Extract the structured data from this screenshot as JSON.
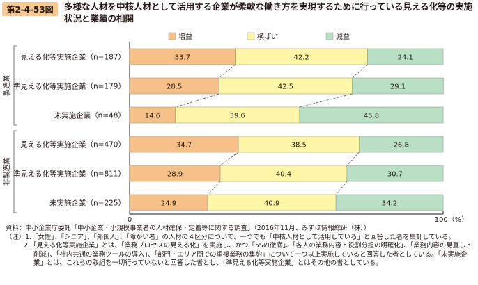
{
  "figure": {
    "label": "第2-4-53図",
    "title": "多様な人材を中核人材として活用する企業が柔軟な働き方を実現するために行っている見える化等の実施状況と業績の相関"
  },
  "chart_data": {
    "type": "bar",
    "stacked": true,
    "orientation": "horizontal",
    "percent_stacked": true,
    "groups": [
      {
        "name": "製造業",
        "rows": [
          0,
          1,
          2
        ]
      },
      {
        "name": "非製造業",
        "rows": [
          3,
          4,
          5
        ]
      }
    ],
    "categories": [
      "見える化等実施企業（n=187）",
      "準見える化等実施企業（n=179）",
      "未実施企業（n=48）",
      "見える化等実施企業（n=470）",
      "準見える化等実施企業（n=811）",
      "未実施企業（n=225）"
    ],
    "series": [
      {
        "name": "増益",
        "color": "#f6c188",
        "values": [
          33.7,
          28.5,
          14.6,
          34.7,
          28.9,
          24.9
        ]
      },
      {
        "name": "横ばい",
        "color": "#fff6a8",
        "values": [
          42.2,
          42.5,
          39.6,
          38.5,
          40.4,
          40.9
        ]
      },
      {
        "name": "減益",
        "color": "#b9dfc4",
        "values": [
          24.1,
          29.1,
          45.8,
          26.8,
          30.7,
          34.2
        ]
      }
    ],
    "xlim": [
      0,
      100
    ],
    "x_ticks": [
      "0",
      "100（%）"
    ],
    "legend_position": "top",
    "connector_lines": "dashed"
  },
  "notes": {
    "source": "資料：中小企業庁委託「中小企業・小規模事業者の人材確保・定着等に関する調査」（2016年11月、みずほ情報総研（株））",
    "note1": "（注）1.「女性」、「シニア」、「外国人」、「障がい者」の人材の４区分について、一つでも「中核人材として活用している」と回答した者を集計している。",
    "note2": "2.「見える化等実施企業」とは、「業務プロセスの見える化」を実施し、かつ「5Sの徹底」、「各人の業務内容・役割分担の明確化」、「業務内容の見直し・削減」、「社内共通の業務ツールの導入」、「部門・エリア間での重複業務の集約」について一つ以上実施していると回答した者としている。「未実施企業」とは、これらの取組を一切行っていないと回答した者とし、「準見える化等実施企業」とはその他の者としている。"
  }
}
